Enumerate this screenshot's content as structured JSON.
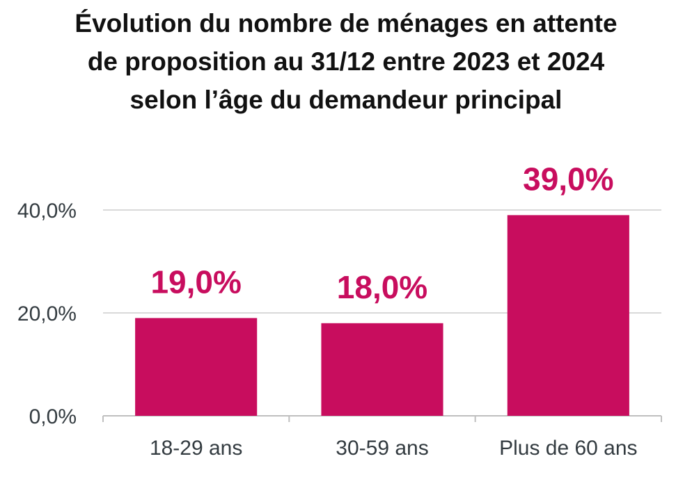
{
  "chart_data": {
    "type": "bar",
    "title_lines": [
      "Évolution du nombre de ménages en attente",
      "de proposition au 31/12 entre 2023 et 2024",
      "selon l’âge du demandeur principal"
    ],
    "categories": [
      "18-29 ans",
      "30-59 ans",
      "Plus de 60 ans"
    ],
    "values": [
      19.0,
      18.0,
      39.0
    ],
    "data_labels": [
      "19,0%",
      "18,0%",
      "39,0%"
    ],
    "yticks": [
      0,
      20,
      40
    ],
    "ytick_labels": [
      "0,0%",
      "20,0%",
      "40,0%"
    ],
    "ylim": [
      0,
      40
    ],
    "grid": true,
    "legend": "none",
    "xlabel": "",
    "ylabel": ""
  },
  "colors": {
    "bar": "#c80d5e",
    "data_label": "#c80d5e",
    "grid": "#d9d9d9",
    "axis": "#bfbfbf",
    "text": "#333b40",
    "title": "#111111"
  }
}
